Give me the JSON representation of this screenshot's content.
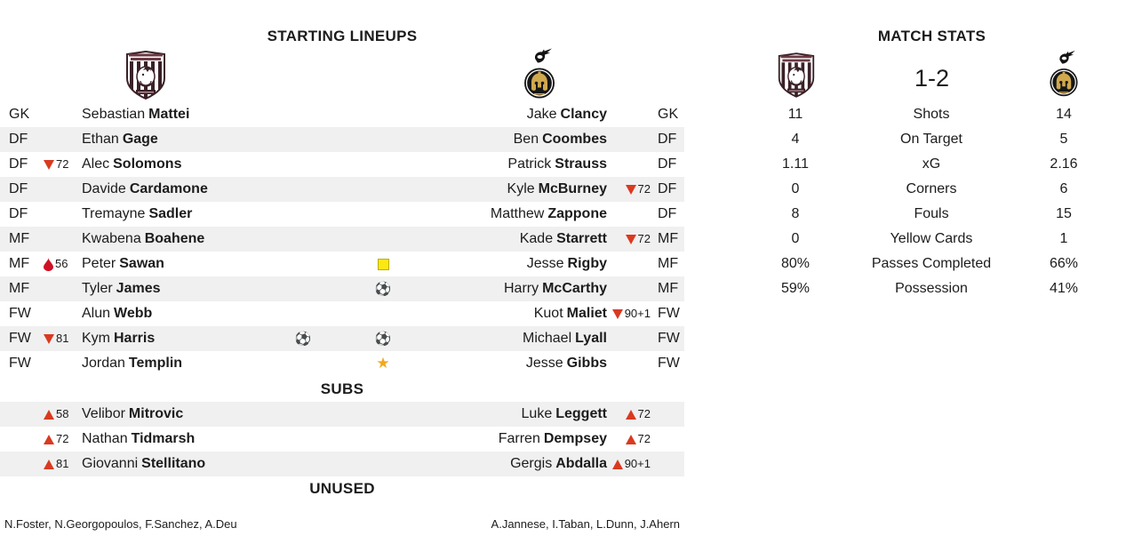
{
  "lineups": {
    "title": "STARTING LINEUPS",
    "subs_title": "SUBS",
    "unused_title": "UNUSED",
    "rows": [
      {
        "pos": "GK",
        "home": {
          "first": "Sebastian",
          "last": "Mattei"
        },
        "away": {
          "first": "Jake",
          "last": "Clancy"
        }
      },
      {
        "pos": "DF",
        "home": {
          "first": "Ethan",
          "last": "Gage"
        },
        "away": {
          "first": "Ben",
          "last": "Coombes"
        }
      },
      {
        "pos": "DF",
        "home": {
          "first": "Alec",
          "last": "Solomons",
          "sub": {
            "dir": "off",
            "min": "72"
          }
        },
        "away": {
          "first": "Patrick",
          "last": "Strauss"
        }
      },
      {
        "pos": "DF",
        "home": {
          "first": "Davide",
          "last": "Cardamone"
        },
        "away": {
          "first": "Kyle",
          "last": "McBurney",
          "sub": {
            "dir": "off",
            "min": "72"
          }
        }
      },
      {
        "pos": "DF",
        "home": {
          "first": "Tremayne",
          "last": "Sadler"
        },
        "away": {
          "first": "Matthew",
          "last": "Zappone"
        }
      },
      {
        "pos": "MF",
        "home": {
          "first": "Kwabena",
          "last": "Boahene"
        },
        "away": {
          "first": "Kade",
          "last": "Starrett",
          "sub": {
            "dir": "off",
            "min": "72"
          }
        }
      },
      {
        "pos": "MF",
        "home": {
          "first": "Peter",
          "last": "Sawan",
          "injury": "56"
        },
        "away": {
          "first": "Jesse",
          "last": "Rigby",
          "events": [
            "yellow-card"
          ]
        }
      },
      {
        "pos": "MF",
        "home": {
          "first": "Tyler",
          "last": "James"
        },
        "away": {
          "first": "Harry",
          "last": "McCarthy",
          "events": [
            "goal"
          ]
        }
      },
      {
        "pos": "FW",
        "home": {
          "first": "Alun",
          "last": "Webb"
        },
        "away": {
          "first": "Kuot",
          "last": "Maliet",
          "sub": {
            "dir": "off",
            "min": "90+1"
          }
        }
      },
      {
        "pos": "FW",
        "home": {
          "first": "Kym",
          "last": "Harris",
          "sub": {
            "dir": "off",
            "min": "81"
          },
          "events": [
            "goal"
          ]
        },
        "away": {
          "first": "Michael",
          "last": "Lyall",
          "events": [
            "goal"
          ]
        }
      },
      {
        "pos": "FW",
        "home": {
          "first": "Jordan",
          "last": "Templin"
        },
        "away": {
          "first": "Jesse",
          "last": "Gibbs",
          "events": [
            "star"
          ]
        }
      }
    ],
    "subs": [
      {
        "home": {
          "first": "Velibor",
          "last": "Mitrovic",
          "sub": {
            "dir": "on",
            "min": "58"
          }
        },
        "away": {
          "first": "Luke",
          "last": "Leggett",
          "sub": {
            "dir": "on",
            "min": "72"
          }
        }
      },
      {
        "home": {
          "first": "Nathan",
          "last": "Tidmarsh",
          "sub": {
            "dir": "on",
            "min": "72"
          }
        },
        "away": {
          "first": "Farren",
          "last": "Dempsey",
          "sub": {
            "dir": "on",
            "min": "72"
          }
        }
      },
      {
        "home": {
          "first": "Giovanni",
          "last": "Stellitano",
          "sub": {
            "dir": "on",
            "min": "81"
          }
        },
        "away": {
          "first": "Gergis",
          "last": "Abdalla",
          "sub": {
            "dir": "on",
            "min": "90+1"
          }
        }
      }
    ],
    "unused": {
      "home": "N.Foster, N.Georgopoulos, F.Sanchez, A.Deu",
      "away": "A.Jannese, I.Taban, L.Dunn, J.Ahern"
    }
  },
  "stats": {
    "title": "MATCH STATS",
    "score": "1-2",
    "rows": [
      {
        "label": "Shots",
        "home": "11",
        "away": "14"
      },
      {
        "label": "On Target",
        "home": "4",
        "away": "5"
      },
      {
        "label": "xG",
        "home": "1.11",
        "away": "2.16"
      },
      {
        "label": "Corners",
        "home": "0",
        "away": "6"
      },
      {
        "label": "Fouls",
        "home": "8",
        "away": "15"
      },
      {
        "label": "Yellow Cards",
        "home": "0",
        "away": "1"
      },
      {
        "label": "Passes Completed",
        "home": "80%",
        "away": "66%"
      },
      {
        "label": "Possession",
        "home": "59%",
        "away": "41%"
      }
    ]
  },
  "icons": {
    "goal": "⚽",
    "star": "★"
  },
  "colors": {
    "sub_triangle": "#d93a20",
    "yellow_card": "#fde910",
    "yellow_card_border": "#b8ad14",
    "star": "#f0a91e",
    "injury": "#cf1125",
    "row_stripe": "#f0f0f0",
    "text": "#1c1c1c"
  }
}
